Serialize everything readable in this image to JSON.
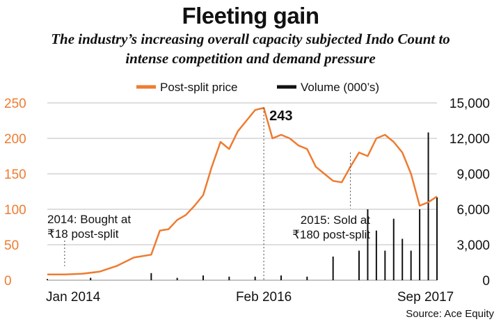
{
  "title": "Fleeting gain",
  "subtitle_lines": [
    "The industry’s increasing overall capacity subjected Indo Count to",
    "intense competition and demand pressure"
  ],
  "source": "Source: Ace Equity",
  "colors": {
    "price": "#ee7b30",
    "volume": "#111111",
    "grid": "#bdbdbd",
    "text": "#111111"
  },
  "chart_data": {
    "type": "line",
    "legend": {
      "placement": "top-center",
      "price_label": "Post-split price",
      "volume_label": "Volume (000’s)"
    },
    "x_ticks": [
      "Jan 2014",
      "Feb 2016",
      "Sep 2017"
    ],
    "x_range": [
      "2014-01",
      "2017-10"
    ],
    "left_axis": {
      "ticks": [
        "0",
        "50",
        "100",
        "150",
        "200",
        "250"
      ],
      "ylim": [
        0,
        250
      ]
    },
    "right_axis": {
      "ticks": [
        "0",
        "3,000",
        "6,000",
        "9,000",
        "12,000",
        "15,000"
      ],
      "ylim": [
        0,
        15000
      ]
    },
    "grid": true,
    "price_series": {
      "name": "Post-split price",
      "x": [
        "2014-01",
        "2014-03",
        "2014-05",
        "2014-07",
        "2014-09",
        "2014-11",
        "2015-01",
        "2015-02",
        "2015-03",
        "2015-04",
        "2015-05",
        "2015-06",
        "2015-07",
        "2015-08",
        "2015-09",
        "2015-10",
        "2015-11",
        "2015-12",
        "2016-01",
        "2016-02",
        "2016-03",
        "2016-04",
        "2016-05",
        "2016-06",
        "2016-07",
        "2016-08",
        "2016-09",
        "2016-10",
        "2016-11",
        "2016-12",
        "2017-01",
        "2017-02",
        "2017-03",
        "2017-04",
        "2017-05",
        "2017-06",
        "2017-07",
        "2017-08",
        "2017-09",
        "2017-10"
      ],
      "y": [
        8,
        8,
        9,
        12,
        20,
        32,
        36,
        70,
        72,
        85,
        92,
        105,
        120,
        160,
        195,
        185,
        210,
        225,
        240,
        243,
        200,
        205,
        200,
        190,
        185,
        160,
        150,
        140,
        138,
        160,
        180,
        175,
        200,
        205,
        195,
        180,
        150,
        105,
        110,
        118
      ]
    },
    "volume_series": {
      "name": "Volume (000’s)",
      "x": [
        "2014-01",
        "2014-06",
        "2015-01",
        "2015-04",
        "2015-07",
        "2015-10",
        "2016-01",
        "2016-04",
        "2016-07",
        "2016-10",
        "2017-01",
        "2017-02",
        "2017-03",
        "2017-04",
        "2017-05",
        "2017-06",
        "2017-07",
        "2017-08",
        "2017-09",
        "2017-10"
      ],
      "y": [
        100,
        200,
        600,
        200,
        400,
        300,
        300,
        400,
        300,
        2000,
        2500,
        6000,
        4200,
        2500,
        5200,
        3500,
        2500,
        6000,
        12500,
        7000
      ]
    },
    "annotations": [
      {
        "id": "bought",
        "lines": [
          "2014: Bought at",
          "₹18 post-split"
        ],
        "x": "2014-03",
        "y": 18
      },
      {
        "id": "peak",
        "lines": [
          "243"
        ],
        "x": "2016-02",
        "y": 243
      },
      {
        "id": "sold",
        "lines": [
          "2015: Sold at",
          "₹180 post-split"
        ],
        "x": "2016-12",
        "y": 180
      }
    ]
  }
}
